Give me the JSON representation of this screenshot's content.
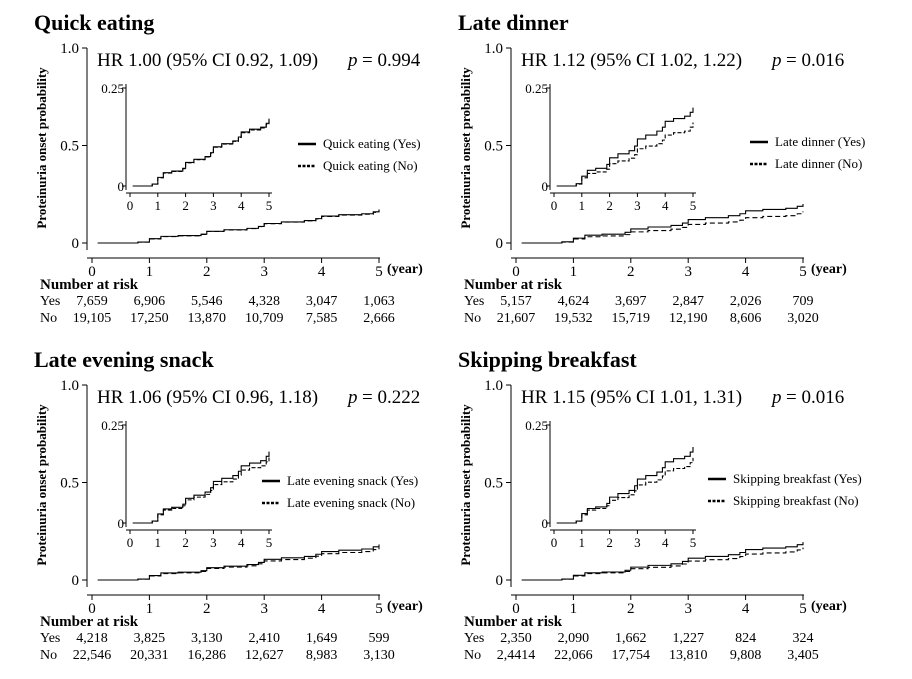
{
  "chart_data": [
    {
      "type": "line",
      "title": "Quick eating",
      "hr_text": "HR 1.00 (95% CI 0.92, 1.09)",
      "p_label": "p",
      "p_value": "= 0.994",
      "ylabel": "Proteinuria onset probability",
      "xlabel": "(year)",
      "x_ticks": [
        "0",
        "1",
        "2",
        "3",
        "4",
        "5"
      ],
      "y_ticks": [
        "0",
        "0.5",
        "1.0"
      ],
      "xlim": [
        0,
        5
      ],
      "ylim": [
        0,
        1
      ],
      "inset": {
        "xlim": [
          0,
          5
        ],
        "ylim": [
          0,
          0.25
        ],
        "x_ticks": [
          "0",
          "1",
          "2",
          "3",
          "4",
          "5"
        ],
        "y_ticks": [
          "0",
          "0.25"
        ]
      },
      "series": [
        {
          "name": "Quick eating (Yes)",
          "style": "solid",
          "x": [
            0.1,
            0.8,
            1.0,
            1.2,
            1.5,
            1.9,
            2.0,
            2.3,
            2.7,
            2.9,
            3.0,
            3.3,
            3.7,
            3.9,
            4.0,
            4.3,
            4.7,
            4.9,
            5.0
          ],
          "y": [
            0.0,
            0.005,
            0.022,
            0.034,
            0.038,
            0.045,
            0.06,
            0.068,
            0.075,
            0.085,
            0.1,
            0.108,
            0.115,
            0.125,
            0.138,
            0.145,
            0.15,
            0.16,
            0.172
          ]
        },
        {
          "name": "Quick eating (No)",
          "style": "dashed",
          "x": [
            0.1,
            0.8,
            1.0,
            1.2,
            1.5,
            1.9,
            2.0,
            2.3,
            2.7,
            2.9,
            3.0,
            3.3,
            3.7,
            3.9,
            4.0,
            4.3,
            4.7,
            4.9,
            5.0
          ],
          "y": [
            0.0,
            0.005,
            0.021,
            0.033,
            0.037,
            0.044,
            0.059,
            0.067,
            0.074,
            0.084,
            0.099,
            0.107,
            0.114,
            0.124,
            0.136,
            0.143,
            0.148,
            0.157,
            0.168
          ]
        }
      ],
      "risk": {
        "title": "Number at risk",
        "rows": [
          {
            "label": "Yes",
            "values": [
              "7,659",
              "6,906",
              "5,546",
              "4,328",
              "3,047",
              "1,063"
            ]
          },
          {
            "label": "No",
            "values": [
              "19,105",
              "17,250",
              "13,870",
              "10,709",
              "7,585",
              "2,666"
            ]
          }
        ]
      }
    },
    {
      "type": "line",
      "title": "Late dinner",
      "hr_text": "HR 1.12 (95% CI 1.02, 1.22)",
      "p_label": "p",
      "p_value": "= 0.016",
      "ylabel": "Proteinuria onset probability",
      "xlabel": "(year)",
      "x_ticks": [
        "0",
        "1",
        "2",
        "3",
        "4",
        "5"
      ],
      "y_ticks": [
        "0",
        "0.5",
        "1.0"
      ],
      "xlim": [
        0,
        5
      ],
      "ylim": [
        0,
        1
      ],
      "inset": {
        "xlim": [
          0,
          5
        ],
        "ylim": [
          0,
          0.25
        ],
        "x_ticks": [
          "0",
          "1",
          "2",
          "3",
          "4",
          "5"
        ],
        "y_ticks": [
          "0",
          "0.25"
        ]
      },
      "series": [
        {
          "name": "Late dinner (Yes)",
          "style": "solid",
          "x": [
            0.1,
            0.8,
            1.0,
            1.2,
            1.5,
            1.9,
            2.0,
            2.3,
            2.7,
            2.9,
            3.0,
            3.3,
            3.7,
            3.9,
            4.0,
            4.3,
            4.7,
            4.9,
            5.0
          ],
          "y": [
            0.0,
            0.006,
            0.025,
            0.04,
            0.045,
            0.055,
            0.072,
            0.082,
            0.09,
            0.102,
            0.12,
            0.13,
            0.14,
            0.15,
            0.165,
            0.172,
            0.178,
            0.188,
            0.2
          ]
        },
        {
          "name": "Late dinner (No)",
          "style": "dashed",
          "x": [
            0.1,
            0.8,
            1.0,
            1.2,
            1.5,
            1.9,
            2.0,
            2.3,
            2.7,
            2.9,
            3.0,
            3.3,
            3.7,
            3.9,
            4.0,
            4.3,
            4.7,
            4.9,
            5.0
          ],
          "y": [
            0.0,
            0.005,
            0.021,
            0.032,
            0.036,
            0.043,
            0.057,
            0.064,
            0.071,
            0.08,
            0.095,
            0.102,
            0.108,
            0.117,
            0.13,
            0.136,
            0.14,
            0.15,
            0.162
          ]
        }
      ],
      "risk": {
        "title": "Number at risk",
        "rows": [
          {
            "label": "Yes",
            "values": [
              "5,157",
              "4,624",
              "3,697",
              "2,847",
              "2,026",
              "709"
            ]
          },
          {
            "label": "No",
            "values": [
              "21,607",
              "19,532",
              "15,719",
              "12,190",
              "8,606",
              "3,020"
            ]
          }
        ]
      }
    },
    {
      "type": "line",
      "title": "Late evening snack",
      "hr_text": "HR 1.06 (95% CI 0.96, 1.18)",
      "p_label": "p",
      "p_value": "= 0.222",
      "ylabel": "Proteinuria onset probability",
      "xlabel": "(year)",
      "x_ticks": [
        "0",
        "1",
        "2",
        "3",
        "4",
        "5"
      ],
      "y_ticks": [
        "0",
        "0.5",
        "1.0"
      ],
      "xlim": [
        0,
        5
      ],
      "ylim": [
        0,
        1
      ],
      "inset": {
        "xlim": [
          0,
          5
        ],
        "ylim": [
          0,
          0.25
        ],
        "x_ticks": [
          "0",
          "1",
          "2",
          "3",
          "4",
          "5"
        ],
        "y_ticks": [
          "0",
          "0.25"
        ]
      },
      "series": [
        {
          "name": "Late evening snack (Yes)",
          "style": "solid",
          "x": [
            0.1,
            0.8,
            1.0,
            1.2,
            1.5,
            1.9,
            2.0,
            2.3,
            2.7,
            2.9,
            3.0,
            3.3,
            3.7,
            3.9,
            4.0,
            4.3,
            4.7,
            4.9,
            5.0
          ],
          "y": [
            0.0,
            0.005,
            0.023,
            0.036,
            0.04,
            0.048,
            0.063,
            0.071,
            0.079,
            0.09,
            0.106,
            0.114,
            0.121,
            0.132,
            0.146,
            0.153,
            0.159,
            0.17,
            0.182
          ]
        },
        {
          "name": "Late evening snack (No)",
          "style": "dashed",
          "x": [
            0.1,
            0.8,
            1.0,
            1.2,
            1.5,
            1.9,
            2.0,
            2.3,
            2.7,
            2.9,
            3.0,
            3.3,
            3.7,
            3.9,
            4.0,
            4.3,
            4.7,
            4.9,
            5.0
          ],
          "y": [
            0.0,
            0.005,
            0.021,
            0.033,
            0.037,
            0.044,
            0.059,
            0.066,
            0.073,
            0.083,
            0.098,
            0.105,
            0.112,
            0.122,
            0.135,
            0.141,
            0.146,
            0.156,
            0.167
          ]
        }
      ],
      "risk": {
        "title": "Number at risk",
        "rows": [
          {
            "label": "Yes",
            "values": [
              "4,218",
              "3,825",
              "3,130",
              "2,410",
              "1,649",
              "599"
            ]
          },
          {
            "label": "No",
            "values": [
              "22,546",
              "20,331",
              "16,286",
              "12,627",
              "8,983",
              "3,130"
            ]
          }
        ]
      }
    },
    {
      "type": "line",
      "title": "Skipping breakfast",
      "hr_text": "HR 1.15 (95% CI 1.01, 1.31)",
      "p_label": "p",
      "p_value": "= 0.016",
      "ylabel": "Proteinuria onset probability",
      "xlabel": "(year)",
      "x_ticks": [
        "0",
        "1",
        "2",
        "3",
        "4",
        "5"
      ],
      "y_ticks": [
        "0",
        "0.5",
        "1.0"
      ],
      "xlim": [
        0,
        5
      ],
      "ylim": [
        0,
        1
      ],
      "inset": {
        "xlim": [
          0,
          5
        ],
        "ylim": [
          0,
          0.25
        ],
        "x_ticks": [
          "0",
          "1",
          "2",
          "3",
          "4",
          "5"
        ],
        "y_ticks": [
          "0",
          "0.25"
        ]
      },
      "series": [
        {
          "name": "Skipping breakfast (Yes)",
          "style": "solid",
          "x": [
            0.1,
            0.8,
            1.0,
            1.2,
            1.5,
            1.9,
            2.0,
            2.3,
            2.7,
            2.9,
            3.0,
            3.3,
            3.7,
            3.9,
            4.0,
            4.3,
            4.7,
            4.9,
            5.0
          ],
          "y": [
            0.0,
            0.005,
            0.024,
            0.037,
            0.041,
            0.05,
            0.066,
            0.075,
            0.083,
            0.095,
            0.112,
            0.121,
            0.13,
            0.141,
            0.156,
            0.164,
            0.17,
            0.181,
            0.194
          ]
        },
        {
          "name": "Skipping breakfast (No)",
          "style": "dashed",
          "x": [
            0.1,
            0.8,
            1.0,
            1.2,
            1.5,
            1.9,
            2.0,
            2.3,
            2.7,
            2.9,
            3.0,
            3.3,
            3.7,
            3.9,
            4.0,
            4.3,
            4.7,
            4.9,
            5.0
          ],
          "y": [
            0.0,
            0.005,
            0.021,
            0.033,
            0.037,
            0.044,
            0.058,
            0.065,
            0.072,
            0.082,
            0.097,
            0.104,
            0.11,
            0.12,
            0.133,
            0.139,
            0.144,
            0.154,
            0.166
          ]
        }
      ],
      "risk": {
        "title": "Number at risk",
        "rows": [
          {
            "label": "Yes",
            "values": [
              "2,350",
              "2,090",
              "1,662",
              "1,227",
              "824",
              "324"
            ]
          },
          {
            "label": "No",
            "values": [
              "2,4414",
              "22,066",
              "17,754",
              "13,810",
              "9,808",
              "3,405"
            ]
          }
        ]
      }
    }
  ]
}
